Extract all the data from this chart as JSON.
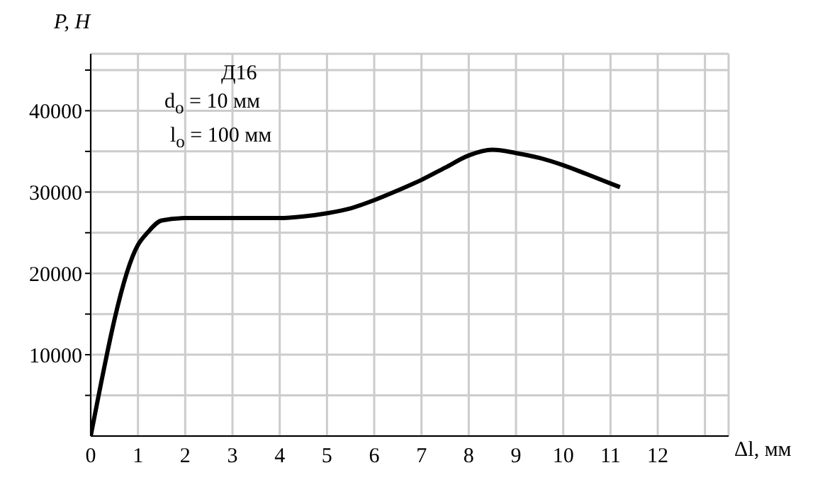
{
  "chart_data": {
    "type": "line",
    "xlabel": "Δl, мм",
    "ylabel": "P, Н",
    "annotations": [
      "Д16",
      "d$_{о}$ = 10 мм",
      "l$_{о}$ = 100 мм"
    ],
    "x": [
      0,
      1,
      1.2,
      1.5,
      2,
      3,
      4,
      4.5,
      5,
      5.5,
      6,
      6.5,
      7,
      7.5,
      8,
      8.5,
      9,
      9.5,
      10,
      10.5,
      11.2
    ],
    "series": [
      {
        "color": "#000000",
        "values": [
          0,
          23500,
          25000,
          26500,
          26800,
          26800,
          26800,
          27000,
          27400,
          28000,
          29000,
          30200,
          31500,
          33000,
          34500,
          35200,
          34800,
          34200,
          33300,
          32200,
          30600
        ]
      }
    ],
    "xlim": [
      0,
      13.5
    ],
    "ylim": [
      0,
      47000
    ],
    "xticks": [
      0,
      1,
      2,
      3,
      4,
      5,
      6,
      7,
      8,
      9,
      10,
      11,
      12,
      {
        "value": 13,
        "label": null
      }
    ],
    "yticks": [
      {
        "value": 5000,
        "label": null
      },
      10000,
      {
        "value": 15000,
        "label": null
      },
      20000,
      {
        "value": 25000,
        "label": null
      },
      30000,
      {
        "value": 35000,
        "label": null
      },
      40000,
      {
        "value": 45000,
        "label": null
      }
    ],
    "grid": true,
    "marker": "none",
    "line_style": "solid"
  }
}
